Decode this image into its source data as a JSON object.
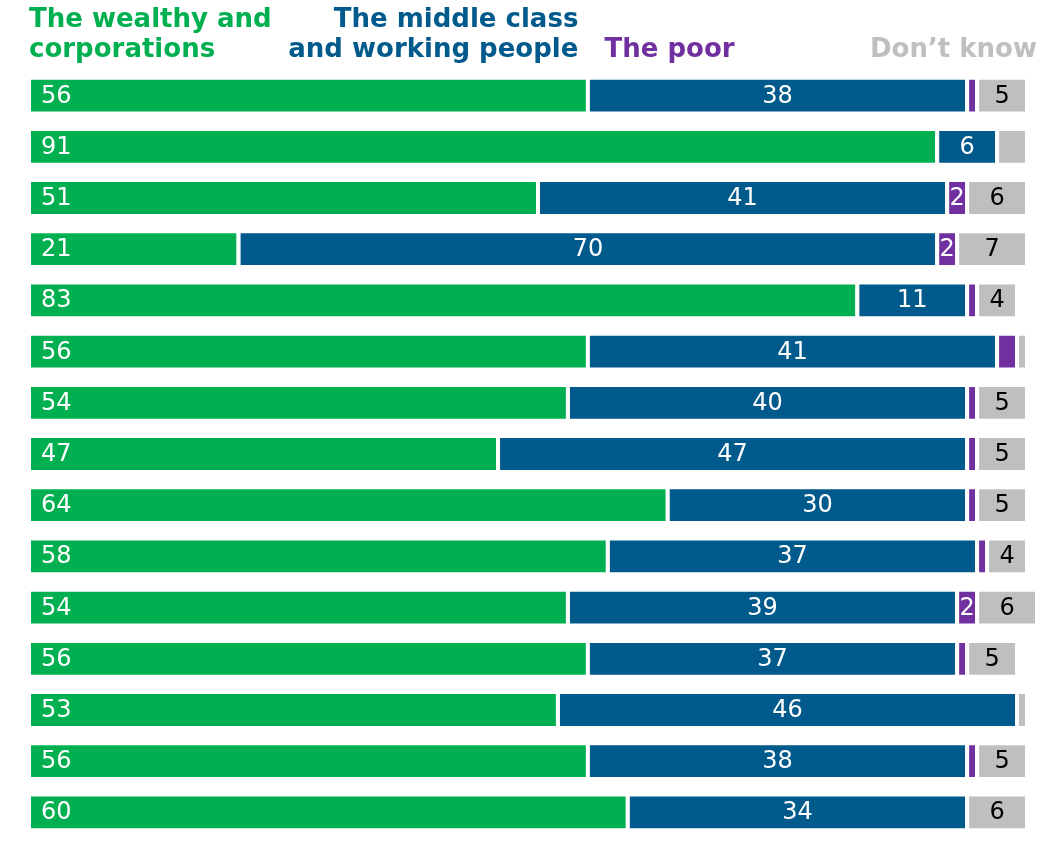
{
  "chart_data": {
    "type": "bar",
    "orientation": "horizontal",
    "stacked": true,
    "tick_labels": false,
    "categories": [
      null,
      null,
      null,
      null,
      null,
      null,
      null,
      null,
      null,
      null,
      null,
      null,
      null,
      null,
      null
    ],
    "series": [
      {
        "name": "The wealthy and corporations",
        "color": "#00b050",
        "values": [
          56,
          91,
          51,
          21,
          83,
          56,
          54,
          47,
          64,
          58,
          54,
          56,
          53,
          56,
          60
        ],
        "value_labels": [
          "56",
          "91",
          "51",
          "21",
          "83",
          "56",
          "54",
          "47",
          "64",
          "58",
          "54",
          "56",
          "53",
          "56",
          "60"
        ]
      },
      {
        "name": "The middle class and working people",
        "color": "#005a8c",
        "values": [
          38,
          6,
          41,
          70,
          11,
          41,
          40,
          47,
          30,
          37,
          39,
          37,
          46,
          38,
          34
        ],
        "value_labels": [
          "38",
          "6",
          "41",
          "70",
          "11",
          "41",
          "40",
          "47",
          "30",
          "37",
          "39",
          "37",
          "46",
          "38",
          "34"
        ]
      },
      {
        "name": "The poor",
        "color": "#7030a0",
        "values": [
          1,
          0,
          2,
          2,
          1,
          2,
          1,
          1,
          1,
          1,
          2,
          1,
          0,
          1,
          0
        ],
        "value_labels": [
          null,
          null,
          "2",
          "2",
          null,
          null,
          null,
          null,
          null,
          null,
          "2",
          null,
          null,
          null,
          null
        ]
      },
      {
        "name": "Don’t know",
        "color": "#bfbfbf",
        "values": [
          5,
          3,
          6,
          7,
          4,
          1,
          5,
          5,
          5,
          4,
          6,
          5,
          1,
          5,
          6
        ],
        "value_labels": [
          "5",
          null,
          "6",
          "7",
          "4",
          null,
          "5",
          "5",
          "5",
          "4",
          "6",
          "5",
          null,
          "5",
          "6"
        ]
      }
    ]
  }
}
